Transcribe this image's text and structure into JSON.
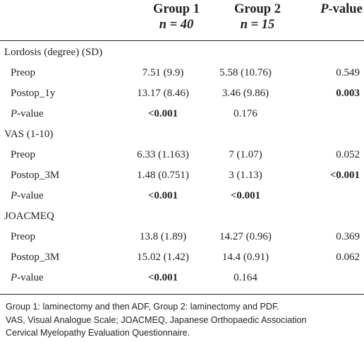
{
  "header": {
    "group1_title": "Group 1",
    "group1_n": "n = 40",
    "group2_title": "Group 2",
    "group2_n": "n = 15",
    "pvalue_p": "P",
    "pvalue_rest": "-value"
  },
  "sections": [
    {
      "title": "Lordosis (degree) (SD)",
      "rows": [
        {
          "label": "Preop",
          "g1": "7.51 (9.9)",
          "g2": "5.58 (10.76)",
          "p": "0.549"
        },
        {
          "label": "Postop_1y",
          "g1": "13.17 (8.46)",
          "g2": "3.46 (9.86)",
          "p": "0.003"
        },
        {
          "label_p": "P",
          "label_rest": "-value",
          "g1": "<0.001",
          "g2": "0.176",
          "p": ""
        }
      ]
    },
    {
      "title": "VAS (1-10)",
      "rows": [
        {
          "label": "Preop",
          "g1": "6.33 (1.163)",
          "g2": "7 (1.07)",
          "p": "0.052"
        },
        {
          "label": "Postop_3M",
          "g1": "1.48 (0.751)",
          "g2": "3 (1.13)",
          "p": "<0.001"
        },
        {
          "label_p": "P",
          "label_rest": "-value",
          "g1": "<0.001",
          "g2": "<0.001",
          "p": ""
        }
      ]
    },
    {
      "title": "JOACMEQ",
      "rows": [
        {
          "label": "Preop",
          "g1": "13.8 (1.89)",
          "g2": "14.27 (0.96)",
          "p": "0.369"
        },
        {
          "label": "Postop_3M",
          "g1": "15.02 (1.42)",
          "g2": "14.4 (0.91)",
          "p": "0.062"
        },
        {
          "label_p": "P",
          "label_rest": "-value",
          "g1": "<0.001",
          "g2": "0.164",
          "p": ""
        }
      ]
    }
  ],
  "footnote": {
    "line1": "Group 1: laminectomy and then ADF, Group 2: laminectomy and PDF.",
    "line2": "VAS, Visual Analogue Scale; JOACMEQ, Japanese Orthopaedic Association",
    "line3": "Cervical Myelopathy Evaluation Questionnaire."
  }
}
